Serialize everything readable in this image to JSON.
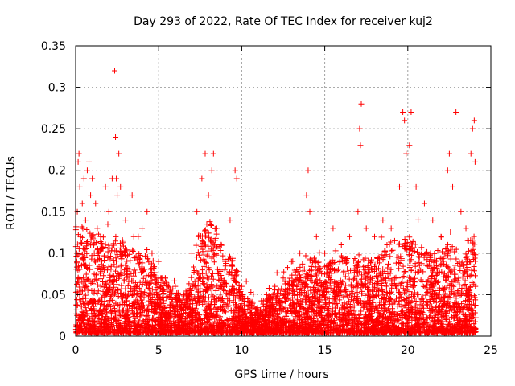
{
  "chart_data": {
    "type": "scatter",
    "title": "Day 293 of 2022, Rate Of TEC Index for receiver kuj2",
    "xlabel": "GPS time / hours",
    "ylabel": "ROTI / TECUs",
    "xlim": [
      0,
      25
    ],
    "ylim": [
      0,
      0.35
    ],
    "xticks": [
      "0",
      "5",
      "10",
      "15",
      "20",
      "25"
    ],
    "yticks": [
      "0",
      "0.05",
      "0.1",
      "0.15",
      "0.2",
      "0.25",
      "0.3",
      "0.35"
    ],
    "grid": true,
    "marker": "+",
    "color": "#ff0000",
    "series": [
      {
        "name": "kuj2",
        "points": [
          [
            0.1,
            0.15
          ],
          [
            0.15,
            0.21
          ],
          [
            0.2,
            0.22
          ],
          [
            0.25,
            0.18
          ],
          [
            0.3,
            0.12
          ],
          [
            0.4,
            0.16
          ],
          [
            0.5,
            0.19
          ],
          [
            0.6,
            0.14
          ],
          [
            0.7,
            0.2
          ],
          [
            0.8,
            0.21
          ],
          [
            0.9,
            0.17
          ],
          [
            1.0,
            0.19
          ],
          [
            1.2,
            0.16
          ],
          [
            1.3,
            0.13
          ],
          [
            1.5,
            0.12
          ],
          [
            1.8,
            0.18
          ],
          [
            2.0,
            0.15
          ],
          [
            2.2,
            0.19
          ],
          [
            2.35,
            0.32
          ],
          [
            2.4,
            0.24
          ],
          [
            2.45,
            0.19
          ],
          [
            2.5,
            0.17
          ],
          [
            2.6,
            0.22
          ],
          [
            2.7,
            0.18
          ],
          [
            3.0,
            0.14
          ],
          [
            3.4,
            0.17
          ],
          [
            3.5,
            0.12
          ],
          [
            4.0,
            0.13
          ],
          [
            4.3,
            0.15
          ],
          [
            4.6,
            0.1
          ],
          [
            5.0,
            0.09
          ],
          [
            5.4,
            0.07
          ],
          [
            6.0,
            0.06
          ],
          [
            6.5,
            0.05
          ],
          [
            7.0,
            0.1
          ],
          [
            7.3,
            0.15
          ],
          [
            7.6,
            0.19
          ],
          [
            7.8,
            0.22
          ],
          [
            8.0,
            0.17
          ],
          [
            8.2,
            0.2
          ],
          [
            8.3,
            0.22
          ],
          [
            8.5,
            0.13
          ],
          [
            8.7,
            0.11
          ],
          [
            9.0,
            0.09
          ],
          [
            9.3,
            0.14
          ],
          [
            9.6,
            0.2
          ],
          [
            9.7,
            0.19
          ],
          [
            10.0,
            0.06
          ],
          [
            10.5,
            0.04
          ],
          [
            11.0,
            0.03
          ],
          [
            11.5,
            0.05
          ],
          [
            12.0,
            0.06
          ],
          [
            12.5,
            0.07
          ],
          [
            13.0,
            0.09
          ],
          [
            13.5,
            0.1
          ],
          [
            13.9,
            0.17
          ],
          [
            14.0,
            0.2
          ],
          [
            14.1,
            0.15
          ],
          [
            14.5,
            0.12
          ],
          [
            15.0,
            0.1
          ],
          [
            15.5,
            0.13
          ],
          [
            16.0,
            0.11
          ],
          [
            16.5,
            0.12
          ],
          [
            17.0,
            0.15
          ],
          [
            17.1,
            0.25
          ],
          [
            17.15,
            0.23
          ],
          [
            17.2,
            0.28
          ],
          [
            17.5,
            0.13
          ],
          [
            18.0,
            0.12
          ],
          [
            18.5,
            0.14
          ],
          [
            19.0,
            0.13
          ],
          [
            19.5,
            0.18
          ],
          [
            19.7,
            0.27
          ],
          [
            19.8,
            0.26
          ],
          [
            19.9,
            0.22
          ],
          [
            20.1,
            0.23
          ],
          [
            20.2,
            0.27
          ],
          [
            20.5,
            0.18
          ],
          [
            21.0,
            0.16
          ],
          [
            21.5,
            0.14
          ],
          [
            22.0,
            0.12
          ],
          [
            22.4,
            0.2
          ],
          [
            22.5,
            0.22
          ],
          [
            22.7,
            0.18
          ],
          [
            22.9,
            0.27
          ],
          [
            23.2,
            0.15
          ],
          [
            23.5,
            0.13
          ],
          [
            23.8,
            0.22
          ],
          [
            23.9,
            0.25
          ],
          [
            24.0,
            0.26
          ],
          [
            24.05,
            0.21
          ]
        ],
        "envelope": {
          "hours": [
            0,
            0.5,
            1,
            1.5,
            2,
            2.5,
            3,
            3.5,
            4,
            4.5,
            5,
            5.5,
            6,
            6.5,
            7,
            7.5,
            8,
            8.5,
            9,
            9.5,
            10,
            10.5,
            11,
            11.5,
            12,
            12.5,
            13,
            13.5,
            14,
            14.5,
            15,
            15.5,
            16,
            16.5,
            17,
            17.5,
            18,
            18.5,
            19,
            19.5,
            20,
            20.5,
            21,
            21.5,
            22,
            22.5,
            23,
            23.5,
            24
          ],
          "ceiling": [
            0.13,
            0.13,
            0.12,
            0.12,
            0.11,
            0.12,
            0.11,
            0.1,
            0.1,
            0.09,
            0.07,
            0.06,
            0.05,
            0.05,
            0.07,
            0.12,
            0.14,
            0.12,
            0.1,
            0.09,
            0.05,
            0.04,
            0.03,
            0.04,
            0.05,
            0.06,
            0.07,
            0.08,
            0.09,
            0.09,
            0.08,
            0.09,
            0.09,
            0.09,
            0.09,
            0.09,
            0.09,
            0.1,
            0.1,
            0.11,
            0.11,
            0.11,
            0.1,
            0.1,
            0.1,
            0.11,
            0.1,
            0.11,
            0.12
          ]
        }
      }
    ]
  }
}
